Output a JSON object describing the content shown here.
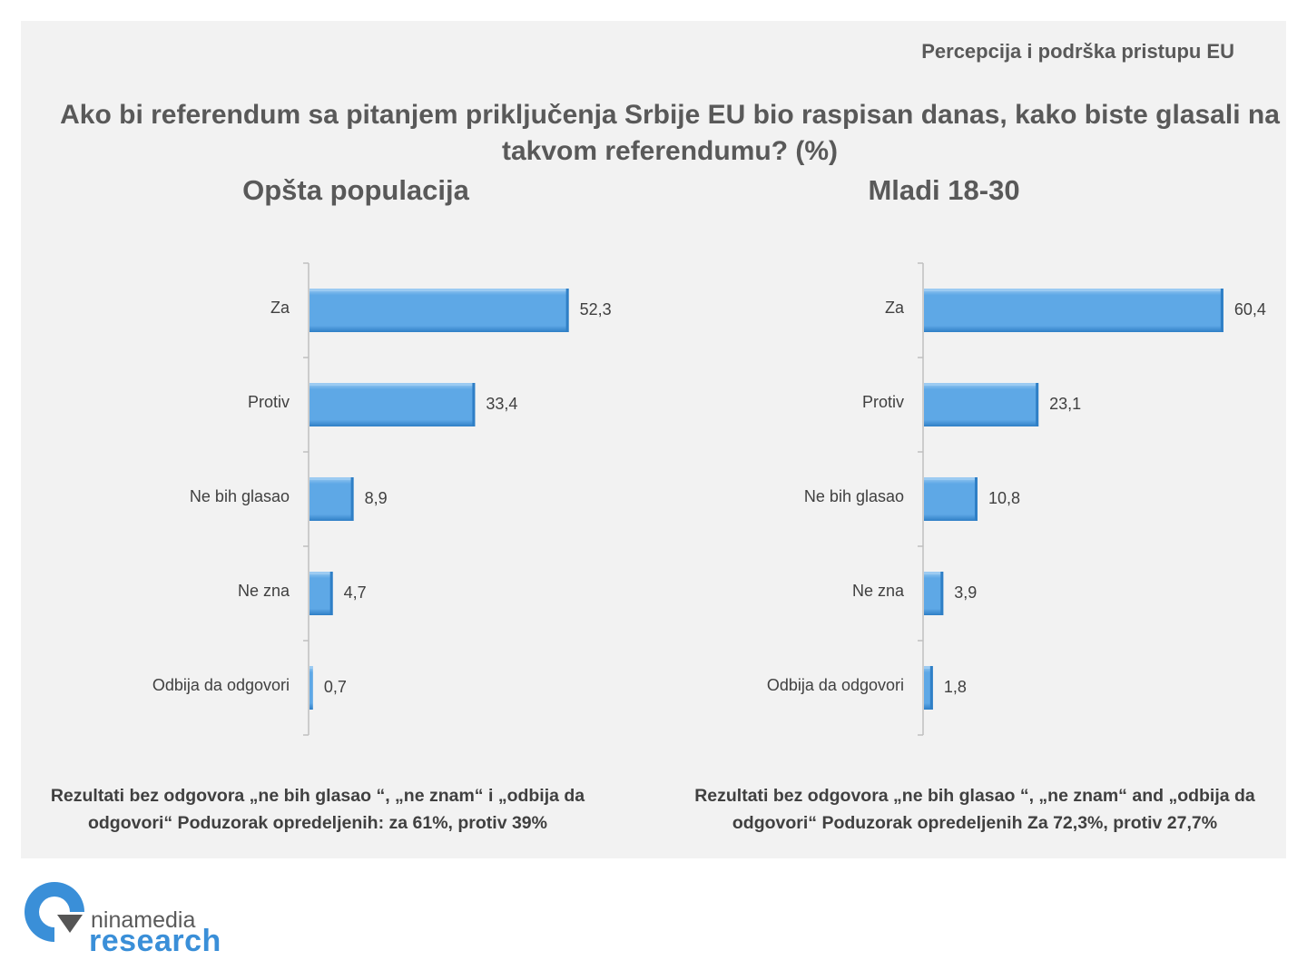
{
  "header": {
    "section_label": "Percepcija i podrška pristupu EU",
    "title": "Ako bi referendum sa pitanjem priključenja Srbije EU bio raspisan danas, kako biste glasali na takvom referendumu? (%)"
  },
  "colors": {
    "bar": "#5ea8e6",
    "bar_light": "#9ccbf2",
    "bar_dark": "#2f7fc6",
    "axis": "#bfbfbf"
  },
  "chart_data": [
    {
      "type": "bar",
      "orientation": "horizontal",
      "title": "Opšta populacija",
      "categories": [
        "Za",
        "Protiv",
        "Ne bih glasao",
        "Ne zna",
        "Odbija da odgovori"
      ],
      "values": [
        52.3,
        33.4,
        8.9,
        4.7,
        0.7
      ],
      "value_labels": [
        "52,3",
        "33,4",
        "8,9",
        "4,7",
        "0,7"
      ],
      "xlim": [
        0,
        65
      ]
    },
    {
      "type": "bar",
      "orientation": "horizontal",
      "title": "Mladi 18-30",
      "categories": [
        "Za",
        "Protiv",
        "Ne bih glasao",
        "Ne zna",
        "Odbija da odgovori"
      ],
      "values": [
        60.4,
        23.1,
        10.8,
        3.9,
        1.8
      ],
      "value_labels": [
        "60,4",
        "23,1",
        "10,8",
        "3,9",
        "1,8"
      ],
      "xlim": [
        0,
        65
      ]
    }
  ],
  "notes": {
    "left": "Rezultati bez odgovora „ne bih glasao “, „ne znam“ i „odbija da odgovori“ Poduzorak opredeljenih: za 61%, protiv 39%",
    "right": "Rezultati bez odgovora „ne bih glasao “, „ne znam“ and „odbija da odgovori“ Poduzorak opredeljenih Za 72,3%, protiv 27,7%"
  },
  "logo": {
    "brand": "ninamedia",
    "sub": "research"
  }
}
